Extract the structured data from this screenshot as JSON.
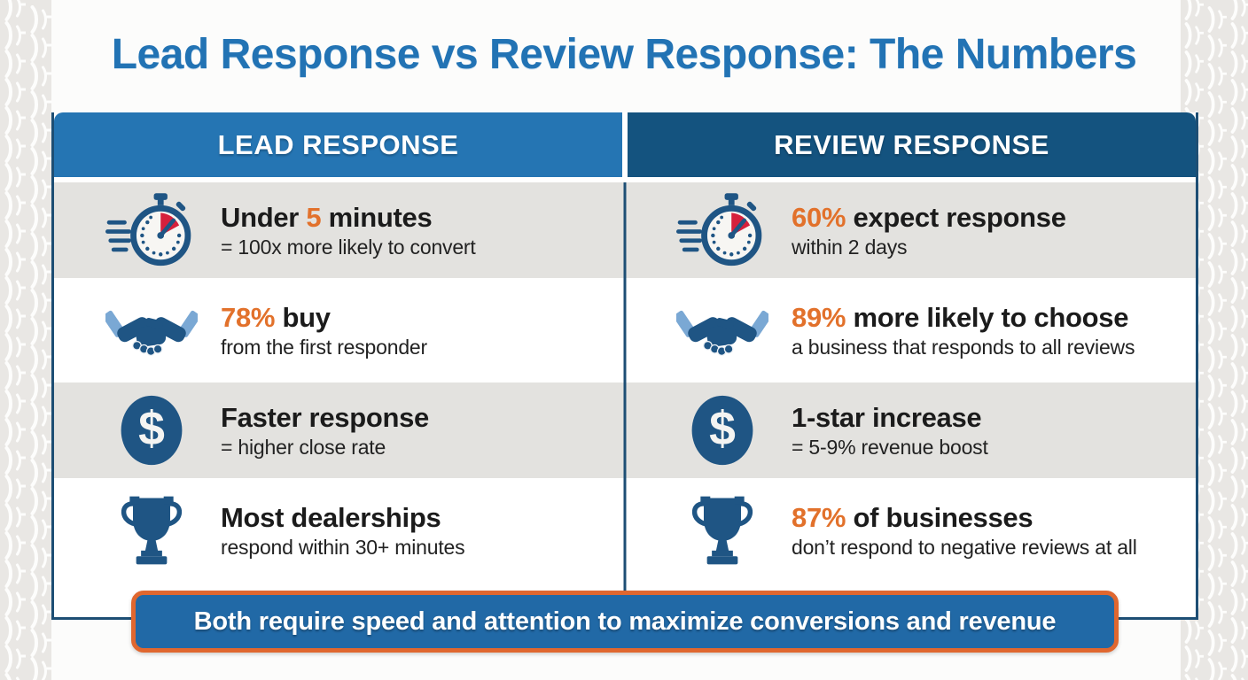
{
  "title": "Lead Response vs Review Response: The Numbers",
  "columns": {
    "left": "LEAD RESPONSE",
    "right": "REVIEW RESPONSE"
  },
  "rows": [
    {
      "icon": "stopwatch-icon",
      "left": {
        "pre": "Under ",
        "highlight": "5",
        "post": " minutes",
        "subtitle": "= 100x more likely to convert"
      },
      "right": {
        "pre": "",
        "highlight": "60%",
        "post": " expect response",
        "subtitle": "within 2 days"
      }
    },
    {
      "icon": "handshake-icon",
      "left": {
        "pre": "",
        "highlight": "78%",
        "post": " buy",
        "subtitle": "from the first responder"
      },
      "right": {
        "pre": "",
        "highlight": "89%",
        "post": " more likely to choose",
        "subtitle": "a business that responds to all reviews"
      }
    },
    {
      "icon": "dollar-icon",
      "left": {
        "pre": "Faster response",
        "highlight": "",
        "post": "",
        "subtitle": "= higher close rate"
      },
      "right": {
        "pre": "1-star increase",
        "highlight": "",
        "post": "",
        "subtitle": "= 5-9% revenue boost"
      }
    },
    {
      "icon": "trophy-icon",
      "left": {
        "pre": "Most dealerships",
        "highlight": "",
        "post": "",
        "subtitle": "respond within 30+ minutes"
      },
      "right": {
        "pre": "",
        "highlight": "87%",
        "post": " of businesses",
        "subtitle": "don’t respond to negative reviews at all"
      }
    }
  ],
  "banner": "Both require speed and attention to maximize conversions and revenue",
  "colors": {
    "title-blue": "#2273b4",
    "hdr-left": "#2575b3",
    "hdr-right": "#14537f",
    "navy": "#1d4e74",
    "icon-blue": "#1f5584",
    "sleeve-blue": "#7aa8d4",
    "orange": "#e2712b",
    "red": "#d5203c",
    "row-gray": "#e3e2df",
    "banner-blue": "#2169a6",
    "banner-border": "#e0672f"
  }
}
